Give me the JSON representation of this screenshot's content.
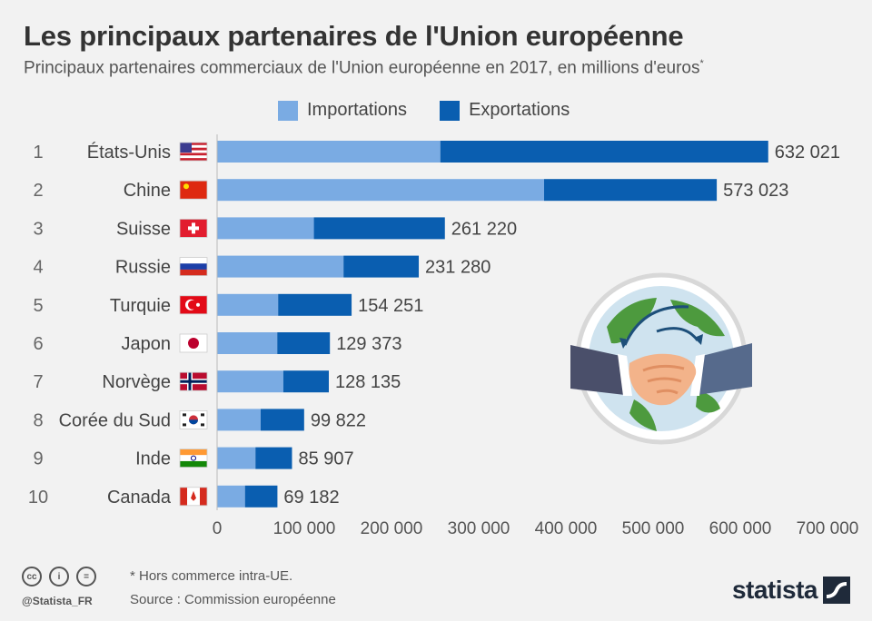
{
  "title": "Les principaux partenaires de l'Union européenne",
  "subtitle": "Principaux partenaires commerciaux de l'Union européenne en 2017, en millions d'euros",
  "subtitle_mark": "*",
  "colors": {
    "imports": "#7aabe3",
    "exports": "#0a5eb0"
  },
  "chart_data": {
    "type": "bar",
    "orientation": "horizontal",
    "stacked": true,
    "categories": [
      "États-Unis",
      "Chine",
      "Suisse",
      "Russie",
      "Turquie",
      "Japon",
      "Norvège",
      "Corée du Sud",
      "Inde",
      "Canada"
    ],
    "ranks": [
      "1",
      "2",
      "3",
      "4",
      "5",
      "6",
      "7",
      "8",
      "9",
      "10"
    ],
    "flags": [
      "us-flag",
      "cn-flag",
      "ch-flag",
      "ru-flag",
      "tr-flag",
      "jp-flag",
      "no-flag",
      "kr-flag",
      "in-flag",
      "ca-flag"
    ],
    "series": [
      {
        "name": "Importations",
        "values": [
          256000,
          375000,
          111000,
          145000,
          70000,
          69000,
          76000,
          50000,
          44000,
          32000
        ]
      },
      {
        "name": "Exportations",
        "values": [
          376021,
          198023,
          150220,
          86280,
          84251,
          60373,
          52135,
          49822,
          41907,
          37182
        ]
      }
    ],
    "totals": [
      "632 021",
      "573 023",
      "261 220",
      "231 280",
      "154 251",
      "129 373",
      "128 135",
      "99 822",
      "85 907",
      "69 182"
    ],
    "xlim": [
      0,
      700000
    ],
    "xticks": [
      0,
      100000,
      200000,
      300000,
      400000,
      500000,
      600000,
      700000
    ],
    "xtick_labels": [
      "0",
      "100 000",
      "200 000",
      "300 000",
      "400 000",
      "500 000",
      "600 000",
      "700 000"
    ],
    "legend_position": "top",
    "grid": false
  },
  "footer": {
    "note": "* Hors commerce intra-UE.",
    "source": "Source : Commission européenne",
    "handle": "@Statista_FR",
    "brand": "statista",
    "cc_icons": [
      "cc-icon",
      "by-icon",
      "nd-icon"
    ],
    "cc_labels": [
      "cc",
      "i",
      "="
    ]
  }
}
